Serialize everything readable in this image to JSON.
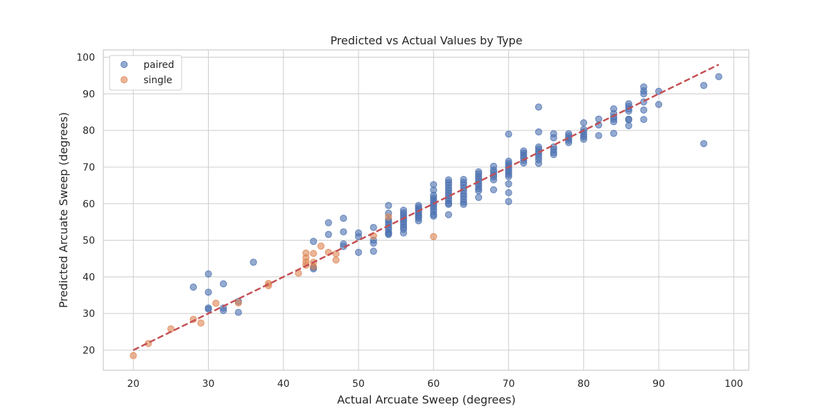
{
  "chart_data": {
    "type": "scatter",
    "title": "Predicted vs Actual Values by Type",
    "xlabel": "Actual Arcuate Sweep (degrees)",
    "ylabel": "Predicted Arcuate Sweep (degrees)",
    "xlim": [
      16,
      102
    ],
    "ylim": [
      14.5,
      102
    ],
    "xticks": [
      20,
      30,
      40,
      50,
      60,
      70,
      80,
      90,
      100
    ],
    "yticks": [
      20,
      30,
      40,
      50,
      60,
      70,
      80,
      90,
      100
    ],
    "grid": true,
    "legend_position": "upper-left",
    "reference_line": {
      "x": [
        20,
        98
      ],
      "y": [
        20,
        98
      ],
      "style": "dashed",
      "color": "#c44e52"
    },
    "series": [
      {
        "name": "paired",
        "color": "#4c72b0",
        "points": [
          [
            28,
            37.2
          ],
          [
            30,
            40.8
          ],
          [
            30,
            35.8
          ],
          [
            30,
            31.5
          ],
          [
            30,
            31.2
          ],
          [
            32,
            38.1
          ],
          [
            32,
            31.5
          ],
          [
            32,
            30.8
          ],
          [
            34,
            33.3
          ],
          [
            34,
            30.3
          ],
          [
            36,
            44.0
          ],
          [
            44,
            49.7
          ],
          [
            44,
            42.2
          ],
          [
            44,
            42.6
          ],
          [
            46,
            54.8
          ],
          [
            46,
            51.6
          ],
          [
            48,
            56.0
          ],
          [
            48,
            52.3
          ],
          [
            48,
            49.0
          ],
          [
            48,
            48.3
          ],
          [
            50,
            52.0
          ],
          [
            50,
            51.0
          ],
          [
            50,
            46.7
          ],
          [
            52,
            53.5
          ],
          [
            52,
            50.0
          ],
          [
            52,
            49.2
          ],
          [
            52,
            47.0
          ],
          [
            54,
            59.5
          ],
          [
            54,
            57.4
          ],
          [
            54,
            55.6
          ],
          [
            54,
            55.0
          ],
          [
            54,
            54.3
          ],
          [
            54,
            53.6
          ],
          [
            54,
            52.9
          ],
          [
            54,
            52.2
          ],
          [
            54,
            51.6
          ],
          [
            54,
            51.8
          ],
          [
            56,
            58.2
          ],
          [
            56,
            57.5
          ],
          [
            56,
            56.9
          ],
          [
            56,
            56.2
          ],
          [
            56,
            55.6
          ],
          [
            56,
            55.0
          ],
          [
            56,
            54.3
          ],
          [
            56,
            53.6
          ],
          [
            56,
            53.0
          ],
          [
            56,
            52.0
          ],
          [
            58,
            59.5
          ],
          [
            58,
            59.0
          ],
          [
            58,
            58.5
          ],
          [
            58,
            58.0
          ],
          [
            58,
            57.5
          ],
          [
            58,
            57.0
          ],
          [
            58,
            56.5
          ],
          [
            58,
            56.0
          ],
          [
            58,
            55.3
          ],
          [
            60,
            65.2
          ],
          [
            60,
            63.7
          ],
          [
            60,
            62.3
          ],
          [
            60,
            61.6
          ],
          [
            60,
            61.0
          ],
          [
            60,
            60.4
          ],
          [
            60,
            59.8
          ],
          [
            60,
            59.2
          ],
          [
            60,
            58.5
          ],
          [
            60,
            57.8
          ],
          [
            60,
            57.0
          ],
          [
            60,
            56.6
          ],
          [
            62,
            66.5
          ],
          [
            62,
            65.8
          ],
          [
            62,
            65.1
          ],
          [
            62,
            64.3
          ],
          [
            62,
            63.6
          ],
          [
            62,
            62.9
          ],
          [
            62,
            62.2
          ],
          [
            62,
            61.5
          ],
          [
            62,
            60.8
          ],
          [
            62,
            60.1
          ],
          [
            62,
            59.8
          ],
          [
            62,
            57.0
          ],
          [
            64,
            66.6
          ],
          [
            64,
            65.8
          ],
          [
            64,
            65.1
          ],
          [
            64,
            64.3
          ],
          [
            64,
            63.5
          ],
          [
            64,
            62.7
          ],
          [
            64,
            62.0
          ],
          [
            64,
            61.2
          ],
          [
            64,
            60.4
          ],
          [
            64,
            59.8
          ],
          [
            66,
            68.7
          ],
          [
            66,
            68.1
          ],
          [
            66,
            67.4
          ],
          [
            66,
            66.8
          ],
          [
            66,
            66.1
          ],
          [
            66,
            65.4
          ],
          [
            66,
            64.8
          ],
          [
            66,
            64.1
          ],
          [
            66,
            63.5
          ],
          [
            66,
            61.7
          ],
          [
            68,
            70.2
          ],
          [
            68,
            69.2
          ],
          [
            68,
            68.6
          ],
          [
            68,
            67.9
          ],
          [
            68,
            67.3
          ],
          [
            68,
            66.5
          ],
          [
            68,
            63.8
          ],
          [
            70,
            79.0
          ],
          [
            70,
            71.6
          ],
          [
            70,
            71.0
          ],
          [
            70,
            70.4
          ],
          [
            70,
            69.8
          ],
          [
            70,
            69.2
          ],
          [
            70,
            68.6
          ],
          [
            70,
            68.0
          ],
          [
            70,
            67.4
          ],
          [
            70,
            65.4
          ],
          [
            70,
            63.0
          ],
          [
            70,
            60.6
          ],
          [
            72,
            74.4
          ],
          [
            72,
            73.8
          ],
          [
            72,
            73.2
          ],
          [
            72,
            72.5
          ],
          [
            72,
            71.8
          ],
          [
            72,
            71.1
          ],
          [
            74,
            86.4
          ],
          [
            74,
            79.6
          ],
          [
            74,
            75.5
          ],
          [
            74,
            74.9
          ],
          [
            74,
            74.2
          ],
          [
            74,
            73.6
          ],
          [
            74,
            72.8
          ],
          [
            74,
            72.0
          ],
          [
            74,
            71.0
          ],
          [
            76,
            79.1
          ],
          [
            76,
            78.0
          ],
          [
            76,
            75.5
          ],
          [
            76,
            74.8
          ],
          [
            76,
            74.0
          ],
          [
            76,
            73.4
          ],
          [
            78,
            79.1
          ],
          [
            78,
            78.5
          ],
          [
            78,
            77.9
          ],
          [
            78,
            77.3
          ],
          [
            78,
            76.7
          ],
          [
            80,
            82.1
          ],
          [
            80,
            80.3
          ],
          [
            80,
            79.6
          ],
          [
            80,
            78.9
          ],
          [
            80,
            78.3
          ],
          [
            80,
            77.6
          ],
          [
            82,
            83.1
          ],
          [
            82,
            81.5
          ],
          [
            82,
            78.6
          ],
          [
            84,
            85.9
          ],
          [
            84,
            84.6
          ],
          [
            84,
            83.7
          ],
          [
            84,
            83.1
          ],
          [
            84,
            82.4
          ],
          [
            84,
            79.2
          ],
          [
            86,
            87.3
          ],
          [
            86,
            86.6
          ],
          [
            86,
            85.9
          ],
          [
            86,
            85.3
          ],
          [
            86,
            83.1
          ],
          [
            86,
            82.9
          ],
          [
            86,
            81.3
          ],
          [
            88,
            91.9
          ],
          [
            88,
            90.8
          ],
          [
            88,
            90.0
          ],
          [
            88,
            87.8
          ],
          [
            88,
            85.6
          ],
          [
            88,
            83.0
          ],
          [
            90,
            90.7
          ],
          [
            90,
            87.1
          ],
          [
            96,
            92.3
          ],
          [
            96,
            76.4
          ],
          [
            98,
            94.7
          ]
        ]
      },
      {
        "name": "single",
        "color": "#dd8452",
        "points": [
          [
            20,
            18.5
          ],
          [
            22,
            21.8
          ],
          [
            25,
            25.8
          ],
          [
            28,
            28.4
          ],
          [
            29,
            27.4
          ],
          [
            31,
            32.8
          ],
          [
            34,
            32.9
          ],
          [
            38,
            38.2
          ],
          [
            38,
            37.6
          ],
          [
            42,
            41.0
          ],
          [
            43,
            46.5
          ],
          [
            43,
            45.2
          ],
          [
            43,
            44.1
          ],
          [
            43,
            43.2
          ],
          [
            44,
            46.4
          ],
          [
            44,
            44.0
          ],
          [
            44,
            42.8
          ],
          [
            45,
            48.4
          ],
          [
            46,
            46.7
          ],
          [
            47,
            46.3
          ],
          [
            47,
            44.6
          ],
          [
            52,
            51.2
          ],
          [
            54,
            56.4
          ],
          [
            60,
            51.0
          ]
        ]
      }
    ]
  }
}
